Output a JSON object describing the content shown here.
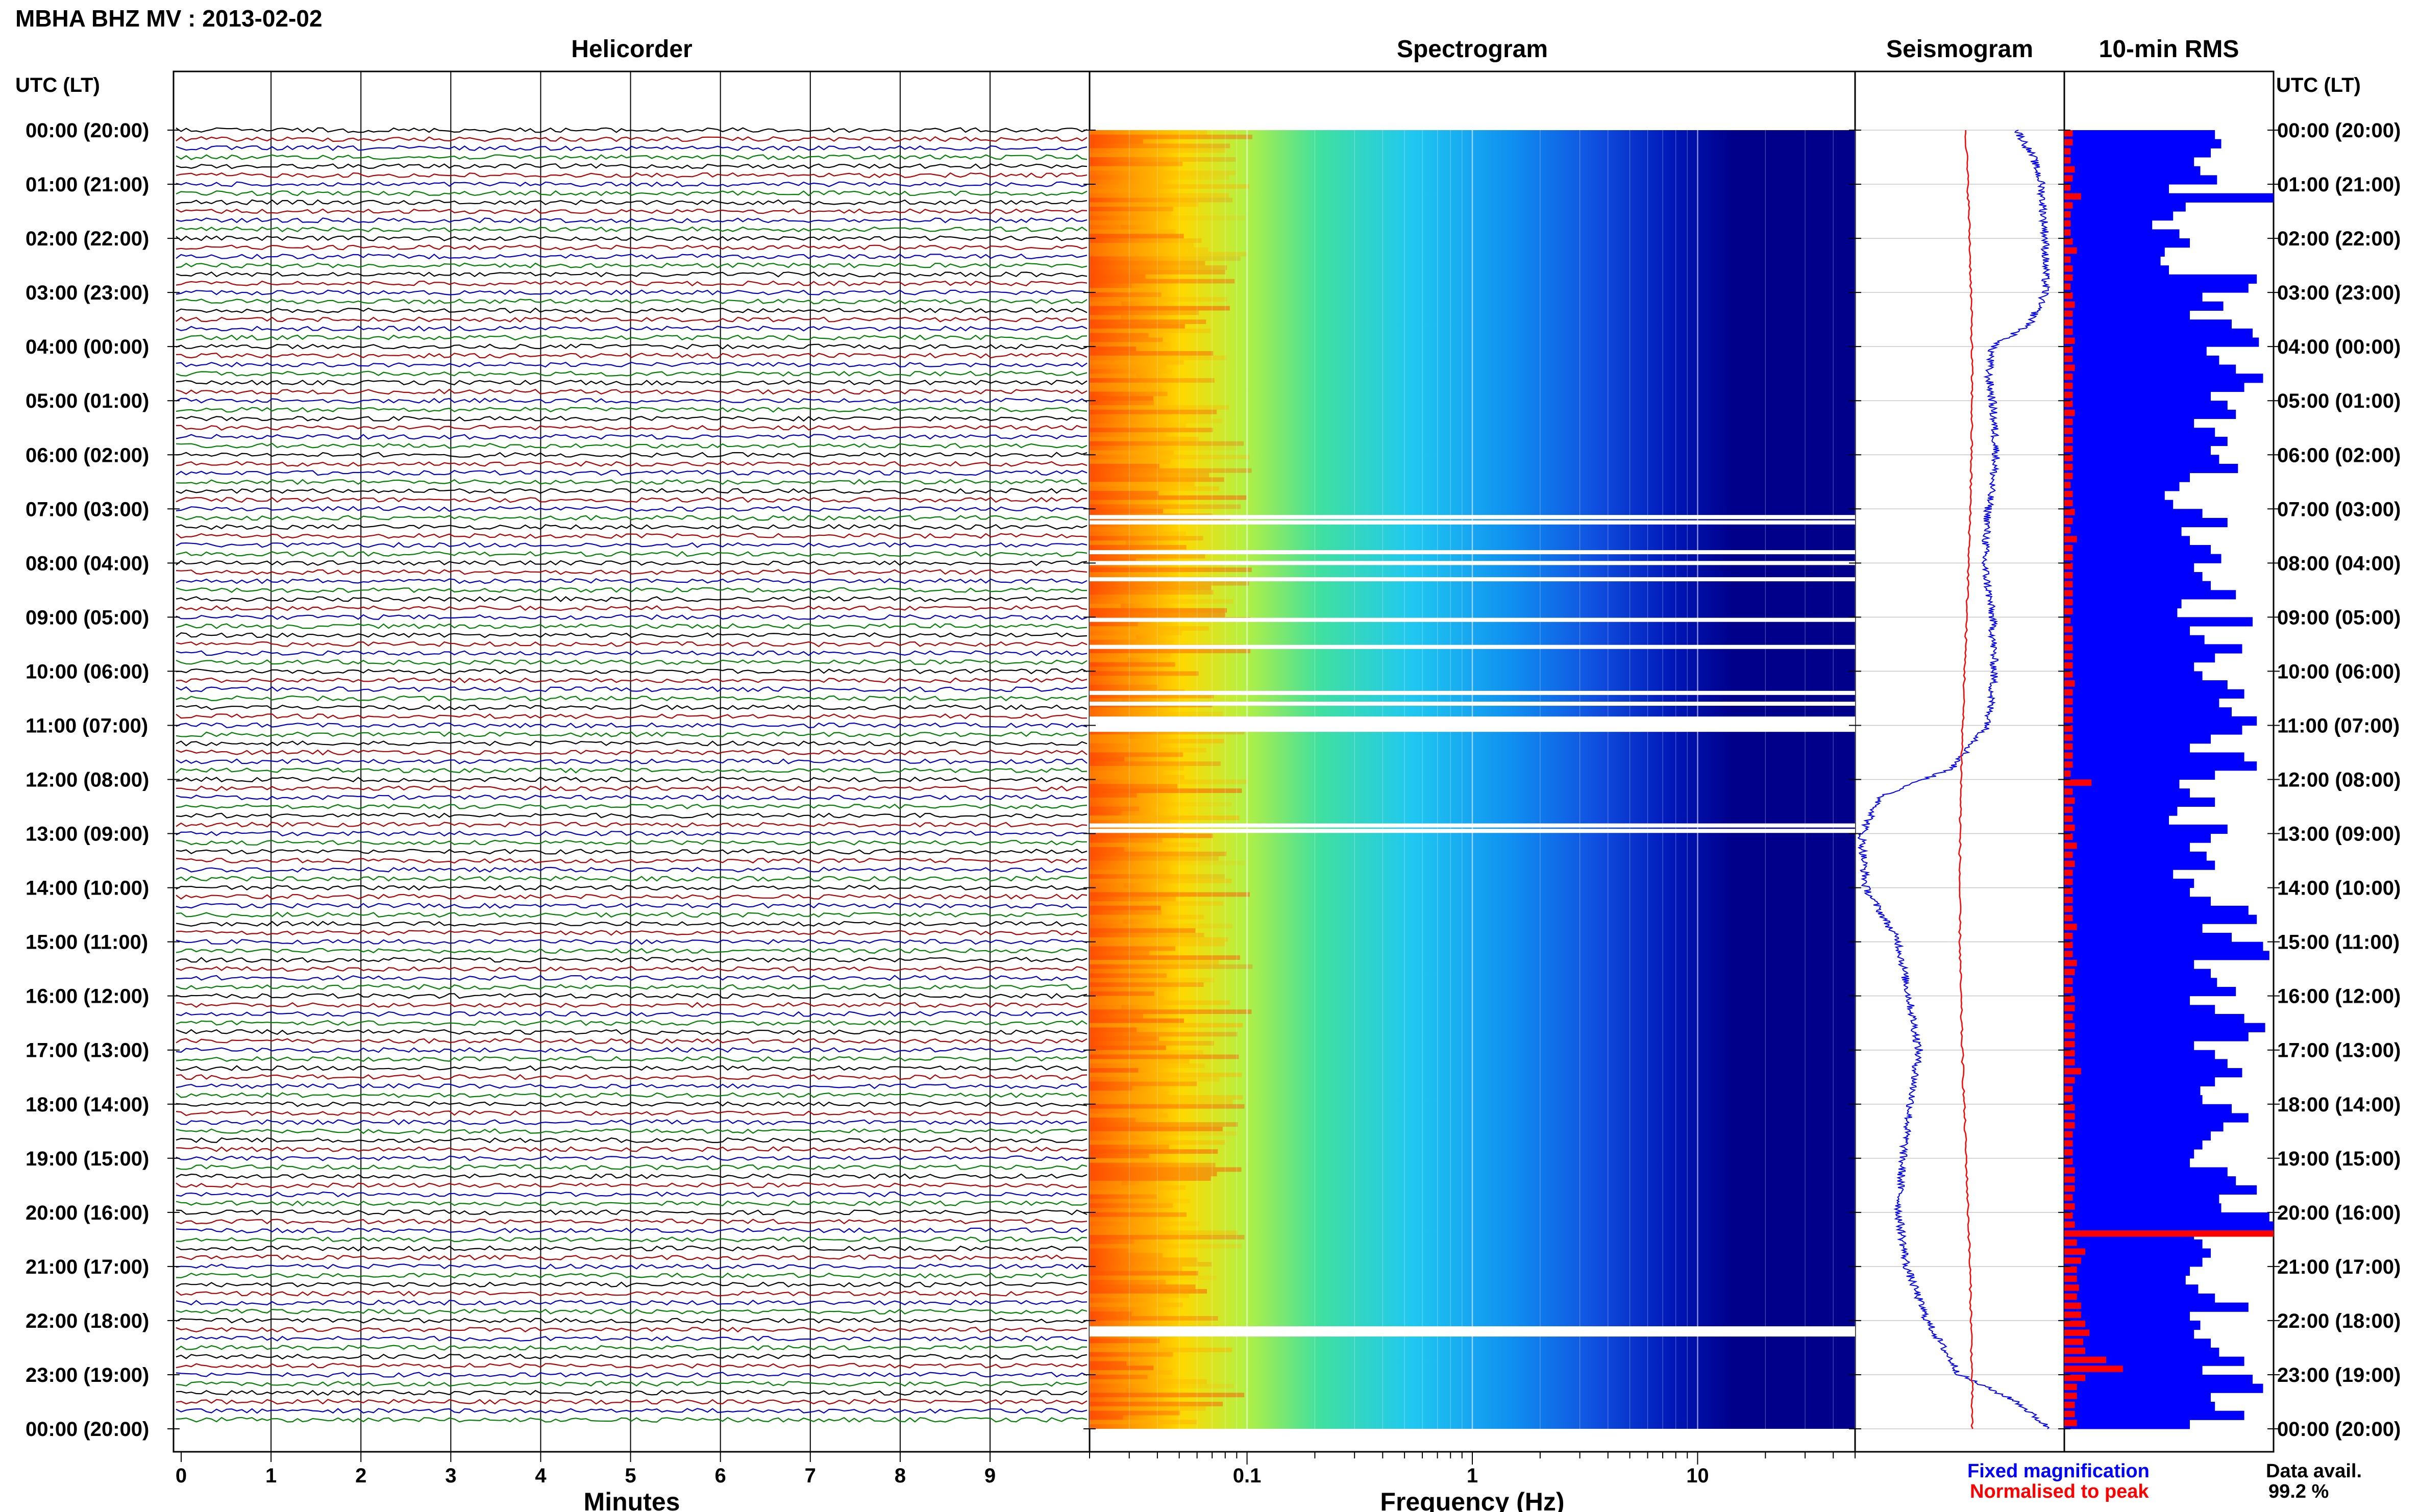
{
  "header": {
    "title": "MBHA BHZ MV : 2013-02-02"
  },
  "panels": {
    "helicorder": "Helicorder",
    "spectrogram": "Spectrogram",
    "seismogram": "Seismogram",
    "rms": "10-min RMS"
  },
  "axes": {
    "time_label": "UTC (LT)",
    "minutes_label": "Minutes",
    "frequency_label": "Frequency (Hz)"
  },
  "legend": {
    "fixed": "Fixed magnification",
    "normalised": "Normalised to peak",
    "data_avail_label": "Data avail.",
    "data_avail_value": "99.2 %"
  },
  "colors": {
    "trace_cycle": [
      "#000000",
      "#b00000",
      "#0000c8",
      "#008000"
    ],
    "fixed_magnification": "#0000ff",
    "normalised_to_peak": "#ff0000",
    "rms_bar": "#0000ff",
    "rms_peak": "#ff0000",
    "spectrogram_high": "#ff6000",
    "spectrogram_low": "#00008b"
  },
  "chart_data": {
    "type": "heatmap",
    "station": "MBHA BHZ MV",
    "date": "2013-02-02",
    "time_ticks": [
      "00:00 (20:00)",
      "01:00 (21:00)",
      "02:00 (22:00)",
      "03:00 (23:00)",
      "04:00 (00:00)",
      "05:00 (01:00)",
      "06:00 (02:00)",
      "07:00 (03:00)",
      "08:00 (04:00)",
      "09:00 (05:00)",
      "10:00 (06:00)",
      "11:00 (07:00)",
      "12:00 (08:00)",
      "13:00 (09:00)",
      "14:00 (10:00)",
      "15:00 (11:00)",
      "16:00 (12:00)",
      "17:00 (13:00)",
      "18:00 (14:00)",
      "19:00 (15:00)",
      "20:00 (16:00)",
      "21:00 (17:00)",
      "22:00 (18:00)",
      "23:00 (19:00)",
      "00:00 (20:00)"
    ],
    "minutes_ticks": [
      "0",
      "1",
      "2",
      "3",
      "4",
      "5",
      "6",
      "7",
      "8",
      "9"
    ],
    "minutes_range": [
      0,
      10
    ],
    "frequency_ticks": [
      "0.1",
      "1",
      "10"
    ],
    "frequency_range": [
      0.02,
      50
    ],
    "frequency_scale": "log",
    "spectrogram_gaps_hour": [
      7.15,
      7.25,
      7.8,
      8.0,
      8.3,
      9.05,
      9.55,
      10.4,
      10.6,
      12.85,
      12.95,
      22.2,
      22.25
    ],
    "data_gap_hours": [
      10.95,
      11.0
    ],
    "seismogram_fixed_profile": [
      {
        "hour": 0.0,
        "level": 0.78
      },
      {
        "hour": 0.5,
        "level": 0.86
      },
      {
        "hour": 1.0,
        "level": 0.9
      },
      {
        "hour": 2.0,
        "level": 0.92
      },
      {
        "hour": 3.0,
        "level": 0.92
      },
      {
        "hour": 3.6,
        "level": 0.84
      },
      {
        "hour": 4.0,
        "level": 0.66
      },
      {
        "hour": 4.5,
        "level": 0.64
      },
      {
        "hour": 5.0,
        "level": 0.66
      },
      {
        "hour": 6.0,
        "level": 0.68
      },
      {
        "hour": 7.0,
        "level": 0.64
      },
      {
        "hour": 8.0,
        "level": 0.62
      },
      {
        "hour": 9.0,
        "level": 0.66
      },
      {
        "hour": 10.0,
        "level": 0.67
      },
      {
        "hour": 11.0,
        "level": 0.64
      },
      {
        "hour": 11.8,
        "level": 0.46
      },
      {
        "hour": 12.3,
        "level": 0.12
      },
      {
        "hour": 13.0,
        "level": 0.02
      },
      {
        "hour": 14.0,
        "level": 0.04
      },
      {
        "hour": 15.0,
        "level": 0.2
      },
      {
        "hour": 16.0,
        "level": 0.25
      },
      {
        "hour": 17.0,
        "level": 0.3
      },
      {
        "hour": 18.0,
        "level": 0.26
      },
      {
        "hour": 19.0,
        "level": 0.22
      },
      {
        "hour": 20.0,
        "level": 0.2
      },
      {
        "hour": 21.0,
        "level": 0.24
      },
      {
        "hour": 22.0,
        "level": 0.34
      },
      {
        "hour": 23.0,
        "level": 0.5
      },
      {
        "hour": 23.5,
        "level": 0.78
      },
      {
        "hour": 24.0,
        "level": 0.94
      }
    ],
    "seismogram_normalised_level": 0.53,
    "rms_bars_relative": [
      0.72,
      0.75,
      0.7,
      0.62,
      0.65,
      0.73,
      0.5,
      1.0,
      0.58,
      0.52,
      0.42,
      0.55,
      0.6,
      0.48,
      0.46,
      0.5,
      0.92,
      0.88,
      0.66,
      0.76,
      0.6,
      0.8,
      0.9,
      0.93,
      0.68,
      0.74,
      0.82,
      0.95,
      0.86,
      0.7,
      0.78,
      0.82,
      0.62,
      0.72,
      0.78,
      0.7,
      0.74,
      0.83,
      0.6,
      0.55,
      0.48,
      0.52,
      0.66,
      0.78,
      0.56,
      0.6,
      0.7,
      0.75,
      0.62,
      0.66,
      0.7,
      0.82,
      0.56,
      0.54,
      0.9,
      0.6,
      0.67,
      0.85,
      0.72,
      0.62,
      0.66,
      0.78,
      0.86,
      0.74,
      0.8,
      0.92,
      0.85,
      0.7,
      0.6,
      0.86,
      0.92,
      0.72,
      0.55,
      0.6,
      0.72,
      0.54,
      0.5,
      0.78,
      0.7,
      0.6,
      0.68,
      0.72,
      0.52,
      0.62,
      0.6,
      0.7,
      0.88,
      0.92,
      0.66,
      0.8,
      0.95,
      0.98,
      0.62,
      0.7,
      0.73,
      0.82,
      0.6,
      0.72,
      0.86,
      0.96,
      0.88,
      0.62,
      0.72,
      0.78,
      0.85,
      0.72,
      0.65,
      0.66,
      0.8,
      0.88,
      0.76,
      0.7,
      0.66,
      0.62,
      0.6,
      0.78,
      0.82,
      0.92,
      0.74,
      0.75,
      0.98,
      1.0,
      0.62,
      0.66,
      0.7,
      0.66,
      0.6,
      0.58,
      0.64,
      0.72,
      0.88,
      0.6,
      0.65,
      0.62,
      0.7,
      0.74,
      0.86,
      0.66,
      0.9,
      0.95,
      0.7,
      0.72,
      0.86,
      0.6
    ],
    "rms_peak_relative": [
      0.04,
      0.04,
      0.03,
      0.03,
      0.05,
      0.04,
      0.03,
      0.08,
      0.04,
      0.03,
      0.03,
      0.03,
      0.04,
      0.06,
      0.03,
      0.04,
      0.04,
      0.03,
      0.04,
      0.05,
      0.04,
      0.04,
      0.04,
      0.05,
      0.04,
      0.04,
      0.05,
      0.04,
      0.04,
      0.04,
      0.04,
      0.05,
      0.04,
      0.04,
      0.04,
      0.04,
      0.04,
      0.04,
      0.04,
      0.03,
      0.04,
      0.04,
      0.05,
      0.04,
      0.03,
      0.06,
      0.04,
      0.04,
      0.04,
      0.04,
      0.04,
      0.04,
      0.04,
      0.04,
      0.03,
      0.04,
      0.04,
      0.04,
      0.04,
      0.04,
      0.04,
      0.05,
      0.04,
      0.04,
      0.04,
      0.04,
      0.04,
      0.04,
      0.04,
      0.04,
      0.04,
      0.03,
      0.13,
      0.04,
      0.05,
      0.04,
      0.04,
      0.05,
      0.04,
      0.06,
      0.04,
      0.05,
      0.04,
      0.04,
      0.04,
      0.04,
      0.04,
      0.04,
      0.06,
      0.04,
      0.04,
      0.04,
      0.06,
      0.05,
      0.04,
      0.04,
      0.05,
      0.05,
      0.04,
      0.05,
      0.05,
      0.05,
      0.05,
      0.05,
      0.08,
      0.05,
      0.04,
      0.04,
      0.05,
      0.05,
      0.05,
      0.04,
      0.04,
      0.04,
      0.04,
      0.05,
      0.05,
      0.05,
      0.04,
      0.05,
      0.04,
      0.05,
      1.0,
      0.06,
      0.1,
      0.08,
      0.06,
      0.06,
      0.07,
      0.06,
      0.08,
      0.08,
      0.1,
      0.12,
      0.09,
      0.1,
      0.2,
      0.28,
      0.1,
      0.06,
      0.06,
      0.05,
      0.05,
      0.06
    ]
  }
}
